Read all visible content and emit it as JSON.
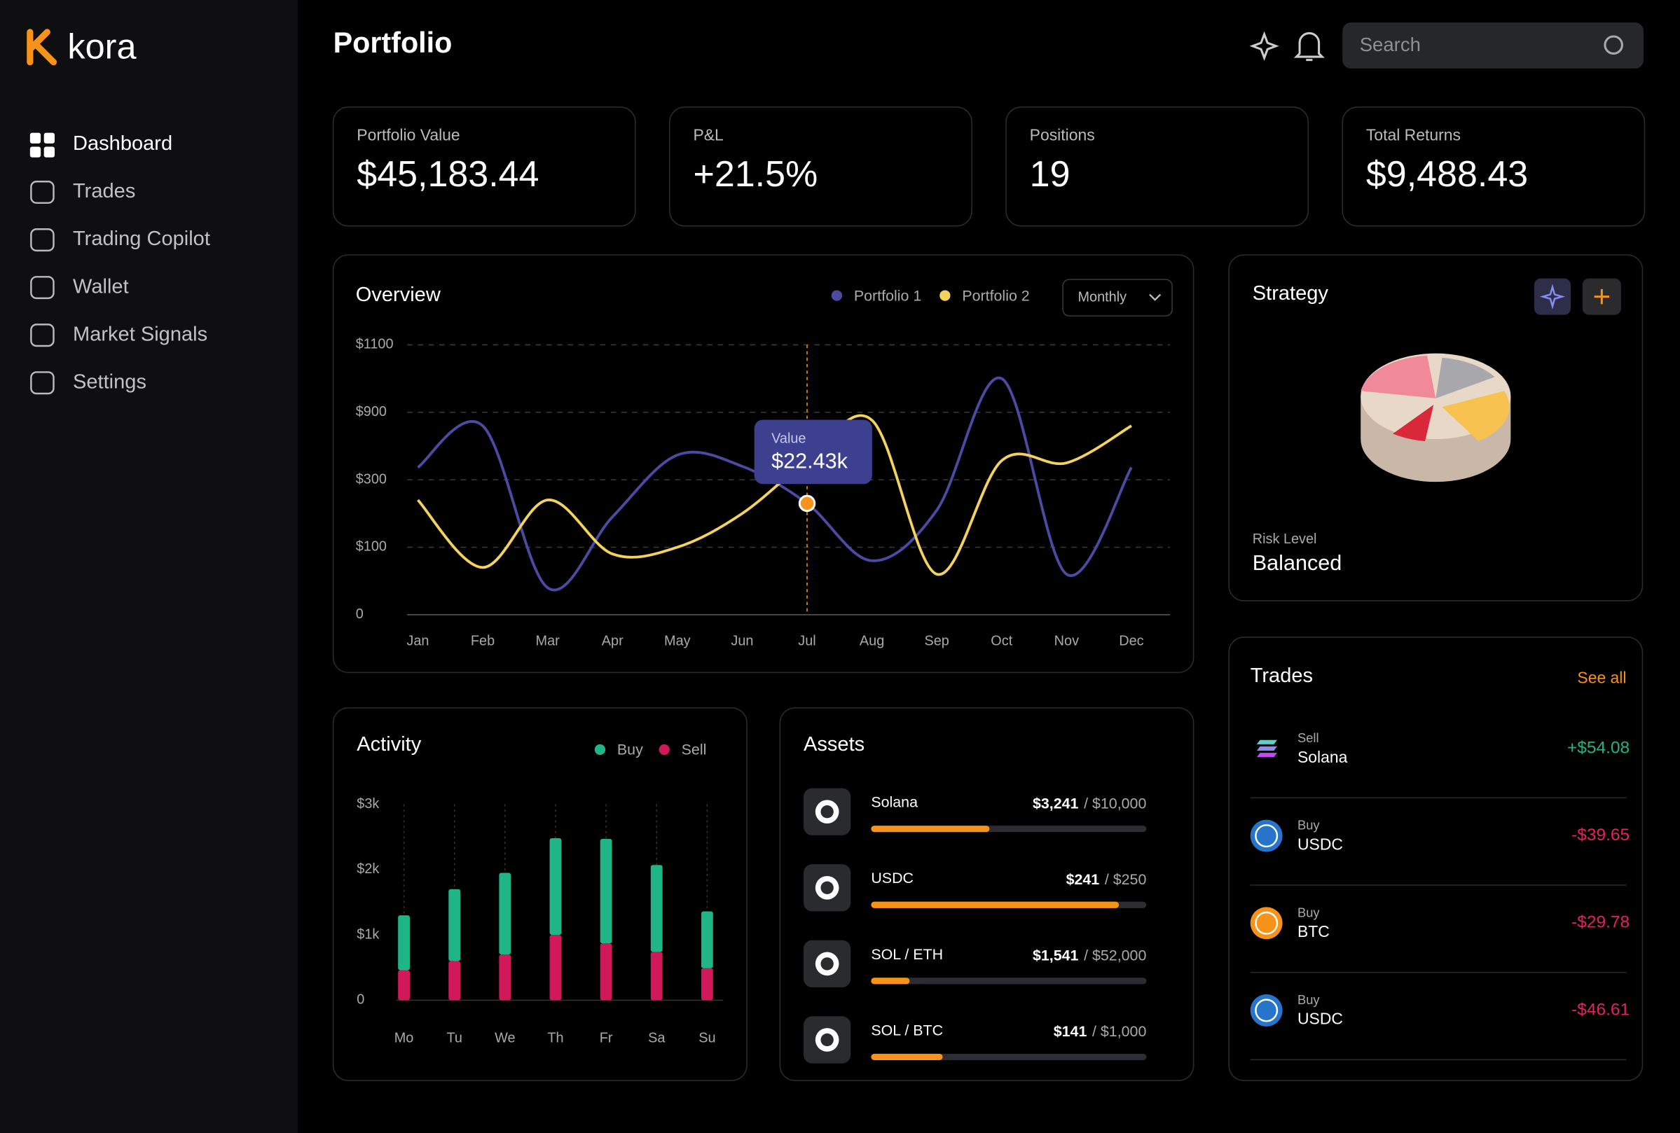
{
  "brand": "kora",
  "nav": [
    "Dashboard",
    "Trades",
    "Trading Copilot",
    "Wallet",
    "Market Signals",
    "Settings"
  ],
  "header": {
    "title": "Portfolio",
    "search_placeholder": "Search"
  },
  "stats": [
    {
      "label": "Portfolio Value",
      "value": "$45,183.44"
    },
    {
      "label": "P&L",
      "value": "+21.5%"
    },
    {
      "label": "Positions",
      "value": "19"
    },
    {
      "label": "Total Returns",
      "value": "$9,488.43"
    }
  ],
  "chart_data": [
    {
      "type": "line",
      "title": "Overview",
      "period": "Monthly",
      "categories": [
        "Jan",
        "Feb",
        "Mar",
        "Apr",
        "May",
        "Jun",
        "Jul",
        "Aug",
        "Sep",
        "Oct",
        "Nov",
        "Dec"
      ],
      "series": [
        {
          "name": "Portfolio 1",
          "color": "#4b4ba3",
          "values": [
            410,
            780,
            40,
            190,
            520,
            420,
            230,
            80,
            210,
            1000,
            60,
            410
          ]
        },
        {
          "name": "Portfolio 2",
          "color": "#f3d35b",
          "values": [
            240,
            70,
            240,
            90,
            100,
            200,
            470,
            830,
            60,
            470,
            450,
            780
          ]
        }
      ],
      "ylim": [
        0,
        1100
      ],
      "yticks": [
        0,
        {
          "value": 100,
          "label": "$100"
        },
        {
          "value": 300,
          "label": "$300"
        },
        {
          "value": 900,
          "label": "$900"
        },
        {
          "value": 1100,
          "label": "$1100"
        }
      ],
      "grid": true,
      "tooltip": {
        "label": "Value",
        "value": "$22.43k"
      }
    },
    {
      "type": "bar",
      "stacked": true,
      "title": "Activity",
      "categories": [
        "Mo",
        "Tu",
        "We",
        "Th",
        "Fr",
        "Sa",
        "Su"
      ],
      "series": [
        {
          "name": "Buy",
          "color": "#1fb587",
          "values": [
            840,
            1100,
            1250,
            1480,
            1600,
            1330,
            870
          ]
        },
        {
          "name": "Sell",
          "color": "#d0185b",
          "values": [
            460,
            600,
            700,
            1000,
            870,
            740,
            490
          ]
        }
      ],
      "ylim": [
        0,
        3000
      ],
      "yticks": [
        0,
        {
          "value": 1000,
          "label": "$1k"
        },
        {
          "value": 2000,
          "label": "$2k"
        },
        {
          "value": 3000,
          "label": "$3k"
        }
      ]
    }
  ],
  "assets": {
    "title": "Assets",
    "items": [
      {
        "name": "Solana",
        "amount": "$3,241",
        "total": "/ $10,000",
        "progress": 43
      },
      {
        "name": "USDC",
        "amount": "$241",
        "total": "/ $250",
        "progress": 90
      },
      {
        "name": "SOL / ETH",
        "amount": "$1,541",
        "total": "/ $52,000",
        "progress": 14
      },
      {
        "name": "SOL / BTC",
        "amount": "$141",
        "total": "/ $1,000",
        "progress": 26
      }
    ]
  },
  "strategy": {
    "title": "Strategy",
    "risk_label": "Risk Level",
    "risk_value": "Balanced"
  },
  "trades": {
    "title": "Trades",
    "see_all": "See all",
    "items": [
      {
        "side": "Sell",
        "asset": "Solana",
        "amount": "+$54.08",
        "color": "#22b37f"
      },
      {
        "side": "Buy",
        "asset": "USDC",
        "amount": "-$39.65",
        "color": "#e0245e"
      },
      {
        "side": "Buy",
        "asset": "BTC",
        "amount": "-$29.78",
        "color": "#e0245e"
      },
      {
        "side": "Buy",
        "asset": "USDC",
        "amount": "-$46.61",
        "color": "#e0245e"
      }
    ]
  }
}
